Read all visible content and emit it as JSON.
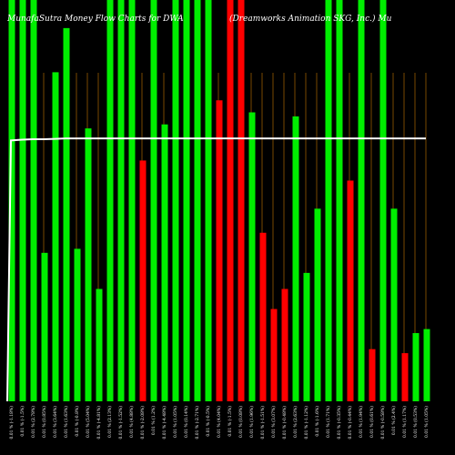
{
  "chart_data": {
    "type": "bar",
    "title": "MunafaSutra Money Flow Charts for DWA",
    "subtitle": "(Dreamworks Animation SKG, Inc.) Mu",
    "categories": [
      "Fri 12 Feb 2016",
      "Thu 11 Feb 2016",
      "Wed 10 Feb 2016",
      "Tue 09 Feb 2016",
      "Mon 08 Feb 2016",
      "Fri 05 Feb 2016",
      "Thu 04 Feb 2016",
      "Wed 03 Feb 2016",
      "Tue 02 Feb 2016",
      "Mon 01 Feb 2016",
      "Fri 29 Jan 2016",
      "Thu 28 Jan 2016",
      "Wed 27 Jan 2016",
      "Tue 26 Jan 2016",
      "Mon 25 Jan 2016",
      "Fri 22 Jan 2016",
      "Thu 21 Jan 2016",
      "Wed 20 Jan 2016",
      "Tue 19 Jan 2016",
      "Fri 15 Jan 2016",
      "Thu 14 Jan 2016",
      "Wed 13 Jan 2016",
      "Tue 12 Jan 2016",
      "Mon 11 Jan 2016",
      "Fri 08 Jan 2016",
      "Thu 07 Jan 2016",
      "Wed 06 Jan 2016",
      "Tue 05 Jan 2016",
      "Mon 04 Jan 2016",
      "Thu 31 Dec 2015",
      "Wed 30 Dec 2015",
      "Tue 29 Dec 2015",
      "Mon 28 Dec 2015",
      "Thu 24 Dec 2015",
      "Wed 23 Dec 2015",
      "Tue 22 Dec 2015",
      "Mon 21 Dec 2015",
      "Fri 18 Dec 2015",
      "Thu 17 Dec 2015"
    ],
    "tick_labels": [
      "0.01 % (-1.18%)",
      "0.01 % (-1.5%)",
      "0.01 % (2.78%)",
      "0.01 % (0.85%)",
      "0.01 % (3.64%)",
      "0.01 % (1.63%)",
      "0.01 % (-0.8%)",
      "0.01 % (5.04%)",
      "0.01 % (-4.81%)",
      "0.01 % (2.13%)",
      "0.01 % (-1.52%)",
      "0.01 % (4.88%)",
      "0.01 % (-2.08%)",
      "0.01 % (1.2%)",
      "0.01 % (-4.48%)",
      "0.01 % (1.05%)",
      "0.01 % (0.14%)",
      "0.01 % (-2.71%)",
      "0.01 % (-0.5%)",
      "0.01 % (4.04%)",
      "0.01 % (-1.5%)",
      "0.01 % (0.08%)",
      "0.01 % (1.96%)",
      "0.01 % (-1.51%)",
      "0.01 % (3.07%)",
      "0.01 % (-0.48%)",
      "0.01 % (2.63%)",
      "0.01 % (-1.12%)",
      "0.01 % (-1.6%)",
      "0.01 % (1.71%)",
      "0.01 % (-0.35%)",
      "0.01 % (-0.44%)",
      "0.01 % (1.94%)",
      "0.01 % (0.61%)",
      "0.01 % (-0.58%)",
      "0.01 % (2.4%)",
      "0.01 % (1.17%)",
      "0.01 % (0.53%)",
      "0.01 % (1.05%)"
    ],
    "series": [
      {
        "values": [
          100,
          100,
          100,
          37,
          82,
          93,
          38,
          68,
          28,
          100,
          100,
          100,
          60,
          100,
          69,
          100,
          100,
          100,
          100,
          75,
          100,
          100,
          72,
          42,
          23,
          28,
          71,
          32,
          48,
          100,
          100,
          55,
          100,
          13,
          100,
          48,
          12,
          17,
          18
        ],
        "flow": [
          "in",
          "in",
          "in",
          "in",
          "in",
          "in",
          "in",
          "in",
          "in",
          "in",
          "in",
          "in",
          "out",
          "in",
          "in",
          "in",
          "in",
          "in",
          "in",
          "out",
          "out",
          "out",
          "in",
          "out",
          "out",
          "out",
          "in",
          "in",
          "in",
          "in",
          "in",
          "out",
          "in",
          "out",
          "in",
          "in",
          "out",
          "in",
          "in"
        ]
      }
    ],
    "flow_colors": {
      "in": "#00ee00",
      "out": "#ff0000"
    },
    "line": {
      "name": "",
      "values": [
        65,
        65.2,
        65.3,
        65.3,
        65.4,
        65.5,
        65.5,
        65.5,
        65.5,
        65.5,
        65.5,
        65.5,
        65.5,
        65.5,
        65.5,
        65.5,
        65.5,
        65.5,
        65.5,
        65.5,
        65.5,
        65.5,
        65.5,
        65.5,
        65.5,
        65.5,
        65.5,
        65.5,
        65.5,
        65.5,
        65.5,
        65.5,
        65.5,
        65.5,
        65.5,
        65.5,
        65.5,
        65.5,
        65.5
      ],
      "color": "#ffffff",
      "start_value": 0
    },
    "ylim": [
      0,
      100
    ],
    "xlabel": "",
    "ylabel": "",
    "grid": "vertical",
    "grid_color": "#c87800",
    "background": "#000000",
    "legend": "none"
  }
}
